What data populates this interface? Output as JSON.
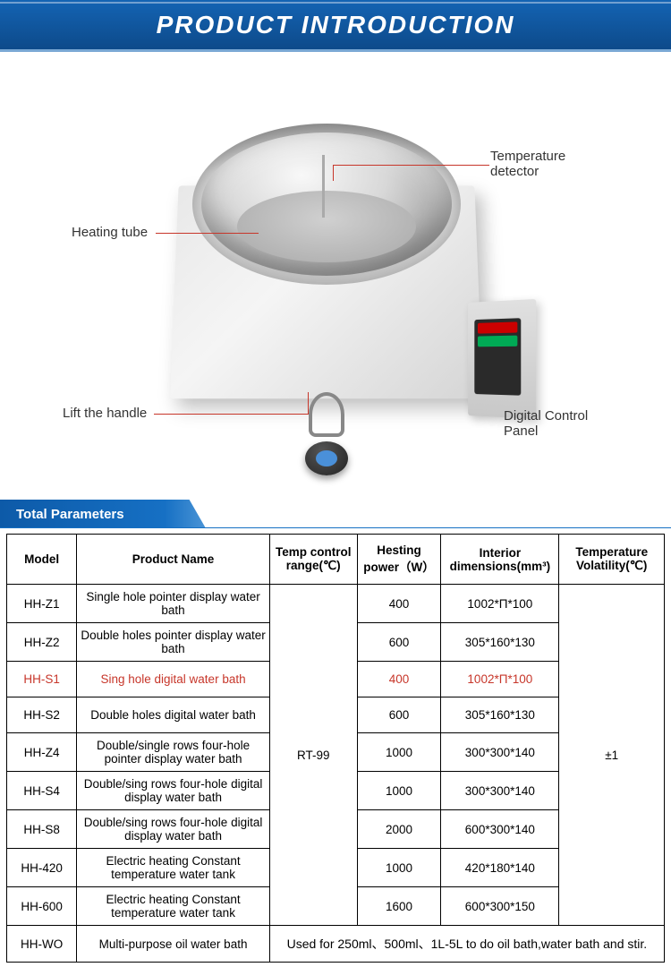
{
  "header": {
    "title": "PRODUCT  INTRODUCTION"
  },
  "callouts": {
    "temp_detector": "Temperature\ndetector",
    "heating_tube": "Heating tube",
    "lift_handle": "Lift the handle",
    "control_panel": "Digital Control\nPanel"
  },
  "section": {
    "title": "Total Parameters"
  },
  "table": {
    "columns": [
      "Model",
      "Product Name",
      "Temp control range(℃)",
      "Hesting power（W）",
      "Interior dimensions(mm³)",
      "Temperature Volatility(℃)"
    ],
    "temp_range_merged": "RT-99",
    "volatility_merged": "±1",
    "rows": [
      {
        "model": "HH-Z1",
        "name": "Single hole pointer display water bath",
        "power": "400",
        "dim": "1002*Π*100",
        "highlight": false
      },
      {
        "model": "HH-Z2",
        "name": "Double holes pointer display water bath",
        "power": "600",
        "dim": "305*160*130",
        "highlight": false
      },
      {
        "model": "HH-S1",
        "name": "Sing hole digital water bath",
        "power": "400",
        "dim": "1002*Π*100",
        "highlight": true
      },
      {
        "model": "HH-S2",
        "name": "Double holes digital water bath",
        "power": "600",
        "dim": "305*160*130",
        "highlight": false
      },
      {
        "model": "HH-Z4",
        "name": "Double/single rows four-hole pointer display water bath",
        "power": "1000",
        "dim": "300*300*140",
        "highlight": false
      },
      {
        "model": "HH-S4",
        "name": "Double/sing rows four-hole digital display water bath",
        "power": "1000",
        "dim": "300*300*140",
        "highlight": false
      },
      {
        "model": "HH-S8",
        "name": "Double/sing rows four-hole digital display water bath",
        "power": "2000",
        "dim": "600*300*140",
        "highlight": false
      },
      {
        "model": "HH-420",
        "name": "Electric heating Constant temperature water tank",
        "power": "1000",
        "dim": "420*180*140",
        "highlight": false
      },
      {
        "model": "HH-600",
        "name": "Electric heating Constant temperature water tank",
        "power": "1600",
        "dim": "600*300*150",
        "highlight": false
      }
    ],
    "last_row": {
      "model": "HH-WO",
      "name": "Multi-purpose oil water bath",
      "merged_text": "Used for 250ml、500ml、1L-5L to do oil bath,water bath and stir."
    }
  },
  "colors": {
    "header_bg": "#1464b4",
    "callout_line": "#c7362a",
    "highlight_text": "#c7362a",
    "section_bg": "#1670c4",
    "border": "#000000"
  }
}
